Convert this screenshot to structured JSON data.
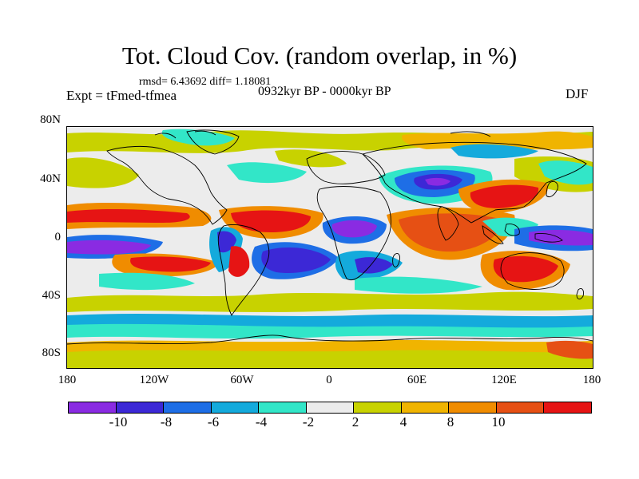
{
  "title": "Tot. Cloud Cov. (random overlap, in %)",
  "stats": "rmsd= 6.43692 diff= 1.18081",
  "experiment": "Expt = tFmed-tfmea",
  "period": "0932kyr BP - 0000kyr BP",
  "season": "DJF",
  "lat_labels": [
    "80N",
    "40N",
    "0",
    "40S",
    "80S"
  ],
  "lon_labels": [
    "180",
    "120W",
    "60W",
    "0",
    "60E",
    "120E",
    "180"
  ],
  "colorbar": {
    "labels": [
      "-10",
      "-8",
      "-6",
      "-4",
      "-2",
      "2",
      "4",
      "8",
      "10"
    ],
    "colors": [
      "#8a2be2",
      "#3c28d6",
      "#1e6ee6",
      "#14aadc",
      "#32e6c8",
      "#ececec",
      "#c8d200",
      "#f0b400",
      "#f08c00",
      "#e65014",
      "#e61414"
    ]
  },
  "palette": {
    "neutral": "#ececec",
    "coast": "#000000"
  }
}
